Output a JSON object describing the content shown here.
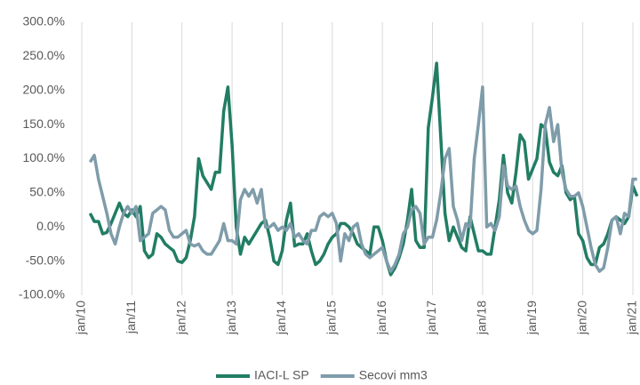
{
  "chart_data": {
    "type": "line",
    "categories": [
      "jan/10",
      null,
      null,
      null,
      null,
      null,
      null,
      null,
      null,
      null,
      null,
      null,
      "jan/11",
      null,
      null,
      null,
      null,
      null,
      null,
      null,
      null,
      null,
      null,
      null,
      "jan/12",
      null,
      null,
      null,
      null,
      null,
      null,
      null,
      null,
      null,
      null,
      null,
      "jan/13",
      null,
      null,
      null,
      null,
      null,
      null,
      null,
      null,
      null,
      null,
      null,
      "jan/14",
      null,
      null,
      null,
      null,
      null,
      null,
      null,
      null,
      null,
      null,
      null,
      "jan/15",
      null,
      null,
      null,
      null,
      null,
      null,
      null,
      null,
      null,
      null,
      null,
      "jan/16",
      null,
      null,
      null,
      null,
      null,
      null,
      null,
      null,
      null,
      null,
      null,
      "jan/17",
      null,
      null,
      null,
      null,
      null,
      null,
      null,
      null,
      null,
      null,
      null,
      "jan/18",
      null,
      null,
      null,
      null,
      null,
      null,
      null,
      null,
      null,
      null,
      null,
      "jan/19",
      null,
      null,
      null,
      null,
      null,
      null,
      null,
      null,
      null,
      null,
      null,
      "jan/20",
      null,
      null,
      null,
      null,
      null,
      null,
      null,
      null,
      null,
      null,
      null,
      "jan/21",
      null
    ],
    "series": [
      {
        "name": "IACI-L SP",
        "color": "#217d63",
        "values": [
          null,
          null,
          20,
          8,
          8,
          -10,
          -8,
          5,
          20,
          35,
          20,
          15,
          25,
          15,
          30,
          -35,
          -45,
          -40,
          -10,
          -15,
          -25,
          -30,
          -35,
          -50,
          -52,
          -45,
          -20,
          15,
          100,
          75,
          65,
          55,
          80,
          80,
          170,
          205,
          120,
          0,
          -40,
          -15,
          -25,
          -15,
          -5,
          5,
          10,
          -15,
          -50,
          -55,
          -35,
          10,
          35,
          -28,
          -25,
          -25,
          -10,
          -35,
          -55,
          -50,
          -40,
          -25,
          -15,
          -10,
          5,
          5,
          0,
          -10,
          -25,
          -30,
          -35,
          -40,
          0,
          0,
          -20,
          -50,
          -70,
          -60,
          -45,
          -25,
          10,
          55,
          -20,
          -30,
          -30,
          145,
          190,
          240,
          130,
          20,
          -20,
          0,
          -15,
          -30,
          -35,
          15,
          -10,
          -35,
          -35,
          -40,
          -40,
          0,
          40,
          105,
          50,
          35,
          80,
          135,
          125,
          70,
          85,
          100,
          150,
          145,
          95,
          80,
          75,
          90,
          50,
          40,
          45,
          -10,
          -20,
          -45,
          -55,
          -55,
          -30,
          -25,
          -10,
          10,
          15,
          10,
          5,
          15,
          60,
          45
        ]
      },
      {
        "name": "Secovi mm3",
        "color": "#7f9caa",
        "values": [
          null,
          null,
          95,
          105,
          70,
          45,
          20,
          -10,
          -25,
          0,
          20,
          30,
          20,
          30,
          -20,
          -15,
          -10,
          20,
          25,
          30,
          25,
          -5,
          -15,
          -15,
          -10,
          -5,
          -25,
          -28,
          -25,
          -35,
          -40,
          -40,
          -30,
          -20,
          5,
          -20,
          -20,
          -25,
          40,
          55,
          45,
          55,
          35,
          55,
          0,
          0,
          5,
          -5,
          0,
          -5,
          5,
          -15,
          -10,
          -20,
          -25,
          -5,
          -5,
          15,
          20,
          15,
          20,
          5,
          -50,
          -10,
          -20,
          0,
          5,
          -25,
          -40,
          -45,
          -40,
          -35,
          -30,
          -50,
          -65,
          -55,
          -40,
          -10,
          0,
          25,
          30,
          20,
          -25,
          -15,
          -15,
          10,
          50,
          100,
          115,
          30,
          10,
          -20,
          5,
          0,
          100,
          150,
          205,
          0,
          5,
          -5,
          15,
          90,
          60,
          55,
          60,
          30,
          10,
          -5,
          -10,
          -5,
          55,
          150,
          175,
          125,
          150,
          80,
          55,
          45,
          45,
          50,
          30,
          0,
          -30,
          -55,
          -65,
          -60,
          -30,
          10,
          15,
          -10,
          20,
          15,
          70,
          70
        ]
      }
    ],
    "ylim": [
      -100,
      300
    ],
    "yticks": [
      {
        "value": -100,
        "label": "-100.0%"
      },
      {
        "value": -50,
        "label": "-50.0%"
      },
      {
        "value": 0,
        "label": "0.0%"
      },
      {
        "value": 50,
        "label": "50.0%"
      },
      {
        "value": 100,
        "label": "100.0%"
      },
      {
        "value": 150,
        "label": "150.0%"
      },
      {
        "value": 200,
        "label": "200.0%"
      },
      {
        "value": 250,
        "label": "250.0%"
      },
      {
        "value": 300,
        "label": "300.0%"
      }
    ],
    "xgrid": true,
    "legend": "bottom"
  }
}
